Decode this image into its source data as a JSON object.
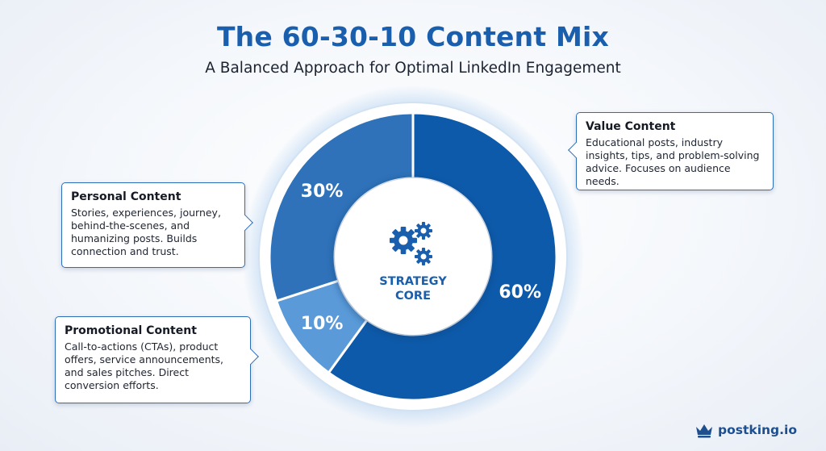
{
  "title": "The 60-30-10 Content Mix",
  "subtitle": "A Balanced Approach for Optimal LinkedIn Engagement",
  "chart_data": {
    "type": "pie",
    "center_label": "STRATEGY CORE",
    "series": [
      {
        "name": "Value Content",
        "value": 60,
        "label": "60%",
        "color": "#0e5aaa"
      },
      {
        "name": "Promotional Content",
        "value": 10,
        "label": "10%",
        "color": "#5b9ad8"
      },
      {
        "name": "Personal Content",
        "value": 30,
        "label": "30%",
        "color": "#2f72b9"
      }
    ]
  },
  "callouts": {
    "value": {
      "title": "Value Content",
      "description": "Educational posts, industry insights, tips, and problem-solving advice. Focuses on audience needs."
    },
    "personal": {
      "title": "Personal Content",
      "description": "Stories, experiences, journey, behind-the-scenes, and humanizing posts. Builds connection and trust."
    },
    "promotional": {
      "title": "Promotional Content",
      "description": "Call-to-actions (CTAs), product offers, service announcements, and sales pitches. Direct conversion efforts."
    }
  },
  "icons": {
    "center": "gears-icon",
    "brand": "crown-icon"
  },
  "brand": {
    "name": "postking.io",
    "color": "#1d4f8f"
  }
}
